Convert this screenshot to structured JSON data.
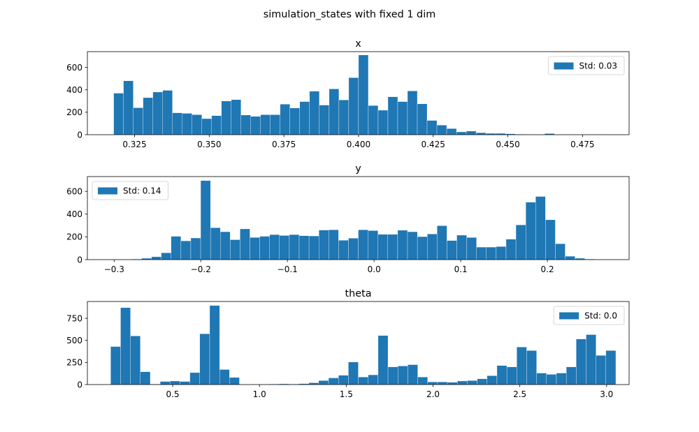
{
  "figure_title": "simulation_states with fixed 1 dim",
  "chart_data": [
    {
      "type": "bar",
      "title": "x",
      "legend": "Std: 0.03",
      "legend_position": "top-right",
      "color": "#1f77b4",
      "xlim": [
        0.3092,
        0.4906
      ],
      "ylim": [
        0,
        740
      ],
      "xticks": [
        0.325,
        0.35,
        0.375,
        0.4,
        0.425,
        0.45,
        0.475
      ],
      "xtick_labels": [
        "0.325",
        "0.350",
        "0.375",
        "0.400",
        "0.425",
        "0.450",
        "0.475"
      ],
      "yticks": [
        0,
        200,
        400,
        600
      ],
      "ytick_labels": [
        "0",
        "200",
        "400",
        "600"
      ],
      "bin_start": 0.318,
      "bin_width": 0.00328,
      "values": [
        370,
        480,
        240,
        330,
        380,
        395,
        195,
        190,
        178,
        143,
        170,
        300,
        312,
        175,
        163,
        178,
        178,
        272,
        238,
        295,
        388,
        264,
        408,
        310,
        508,
        710,
        260,
        218,
        338,
        295,
        390,
        275,
        127,
        85,
        55,
        25,
        32,
        18,
        12,
        12,
        8,
        4,
        3,
        2,
        10,
        3,
        1,
        1,
        1,
        1
      ]
    },
    {
      "type": "bar",
      "title": "y",
      "legend": "Std: 0.14",
      "legend_position": "top-left",
      "color": "#1f77b4",
      "xlim": [
        -0.3309,
        0.2943
      ],
      "ylim": [
        0,
        730
      ],
      "xticks": [
        -0.3,
        -0.2,
        -0.1,
        0.0,
        0.1,
        0.2
      ],
      "xtick_labels": [
        "−0.3",
        "−0.2",
        "−0.1",
        "0.0",
        "0.1",
        "0.2"
      ],
      "yticks": [
        0,
        200,
        400,
        600
      ],
      "ytick_labels": [
        "0",
        "200",
        "400",
        "600"
      ],
      "bin_start": -0.3025,
      "bin_width": 0.01137,
      "values": [
        1,
        2,
        5,
        12,
        25,
        60,
        205,
        165,
        190,
        695,
        280,
        245,
        175,
        270,
        195,
        205,
        220,
        212,
        220,
        210,
        208,
        260,
        262,
        170,
        188,
        262,
        255,
        222,
        222,
        258,
        245,
        202,
        225,
        298,
        168,
        215,
        195,
        110,
        110,
        115,
        180,
        305,
        505,
        555,
        350,
        140,
        30,
        12,
        5,
        2
      ]
    },
    {
      "type": "bar",
      "title": "theta",
      "legend": "Std: 0.0",
      "legend_position": "top-right",
      "color": "#1f77b4",
      "xlim": [
        0.0085,
        3.1297
      ],
      "ylim": [
        0,
        940
      ],
      "xticks": [
        0.5,
        1.0,
        1.5,
        2.0,
        2.5,
        3.0
      ],
      "xtick_labels": [
        "0.5",
        "1.0",
        "1.5",
        "2.0",
        "2.5",
        "3.0"
      ],
      "yticks": [
        0,
        250,
        500,
        750
      ],
      "ytick_labels": [
        "0",
        "250",
        "500",
        "750"
      ],
      "bin_start": 0.1426,
      "bin_width": 0.05707,
      "values": [
        430,
        870,
        550,
        145,
        5,
        35,
        40,
        35,
        135,
        575,
        895,
        170,
        80,
        2,
        2,
        2,
        5,
        8,
        5,
        10,
        20,
        45,
        75,
        105,
        255,
        85,
        110,
        555,
        200,
        210,
        225,
        85,
        30,
        30,
        25,
        40,
        45,
        65,
        100,
        215,
        200,
        425,
        385,
        130,
        115,
        130,
        200,
        515,
        565,
        330,
        385
      ]
    }
  ]
}
